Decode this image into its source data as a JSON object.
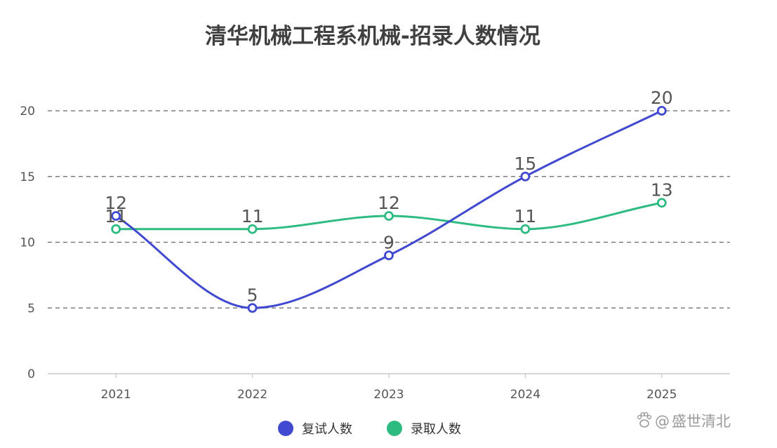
{
  "chart_data": {
    "type": "line",
    "title": "清华机械工程系机械-招录人数情况",
    "categories": [
      "2021",
      "2022",
      "2023",
      "2024",
      "2025"
    ],
    "series": [
      {
        "name": "复试人数",
        "values": [
          12,
          5,
          9,
          15,
          20
        ],
        "color": "#4049cf"
      },
      {
        "name": "录取人数",
        "values": [
          11,
          11,
          12,
          11,
          13
        ],
        "color": "#2dbb82"
      }
    ],
    "y_ticks": [
      "0",
      "5",
      "10",
      "15",
      "20"
    ],
    "ylim": [
      0,
      20
    ],
    "smooth": true,
    "grid": "dashed-horizontal",
    "legend": "bottom-center",
    "data_labels": true
  },
  "watermark": "盛世清北"
}
